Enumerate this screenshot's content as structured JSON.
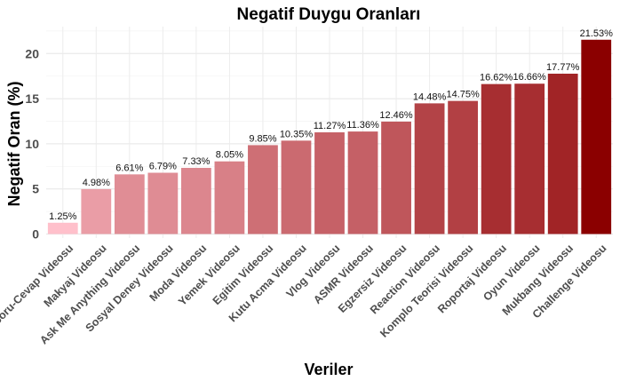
{
  "chart_data": {
    "type": "bar",
    "title": "Negatif Duygu Oranları",
    "xlabel": "Veriler",
    "ylabel": "Negatif Oran (%)",
    "ylim": [
      0,
      22.5
    ],
    "yticks": [
      0,
      5,
      10,
      15,
      20
    ],
    "grid": true,
    "legend": "none",
    "categories": [
      "Soru-Cevap Videosu",
      "Makyaj Videosu",
      "Ask Me Anything Videosu",
      "Sosyal Deney Videosu",
      "Moda Videosu",
      "Yemek Videosu",
      "Egitim Videosu",
      "Kutu Acma Videosu",
      "Vlog Videosu",
      "ASMR Videosu",
      "Egzersiz Videosu",
      "Reaction Videosu",
      "Komplo Teorisi Videosu",
      "Roportaj Videosu",
      "Oyun Videosu",
      "Mukbang Videosu",
      "Challenge Videosu"
    ],
    "values": [
      1.25,
      4.98,
      6.61,
      6.79,
      7.33,
      8.05,
      9.85,
      10.35,
      11.27,
      11.36,
      12.46,
      14.48,
      14.75,
      16.62,
      16.66,
      17.77,
      21.53
    ],
    "value_labels": [
      "1.25%",
      "4.98%",
      "6.61%",
      "6.79%",
      "7.33%",
      "8.05%",
      "9.85%",
      "10.35%",
      "11.27%",
      "11.36%",
      "12.46%",
      "14.48%",
      "14.75%",
      "16.62%",
      "16.66%",
      "17.77%",
      "21.53%"
    ],
    "color_low": "#ffc0cb",
    "color_high": "#8b0000"
  }
}
